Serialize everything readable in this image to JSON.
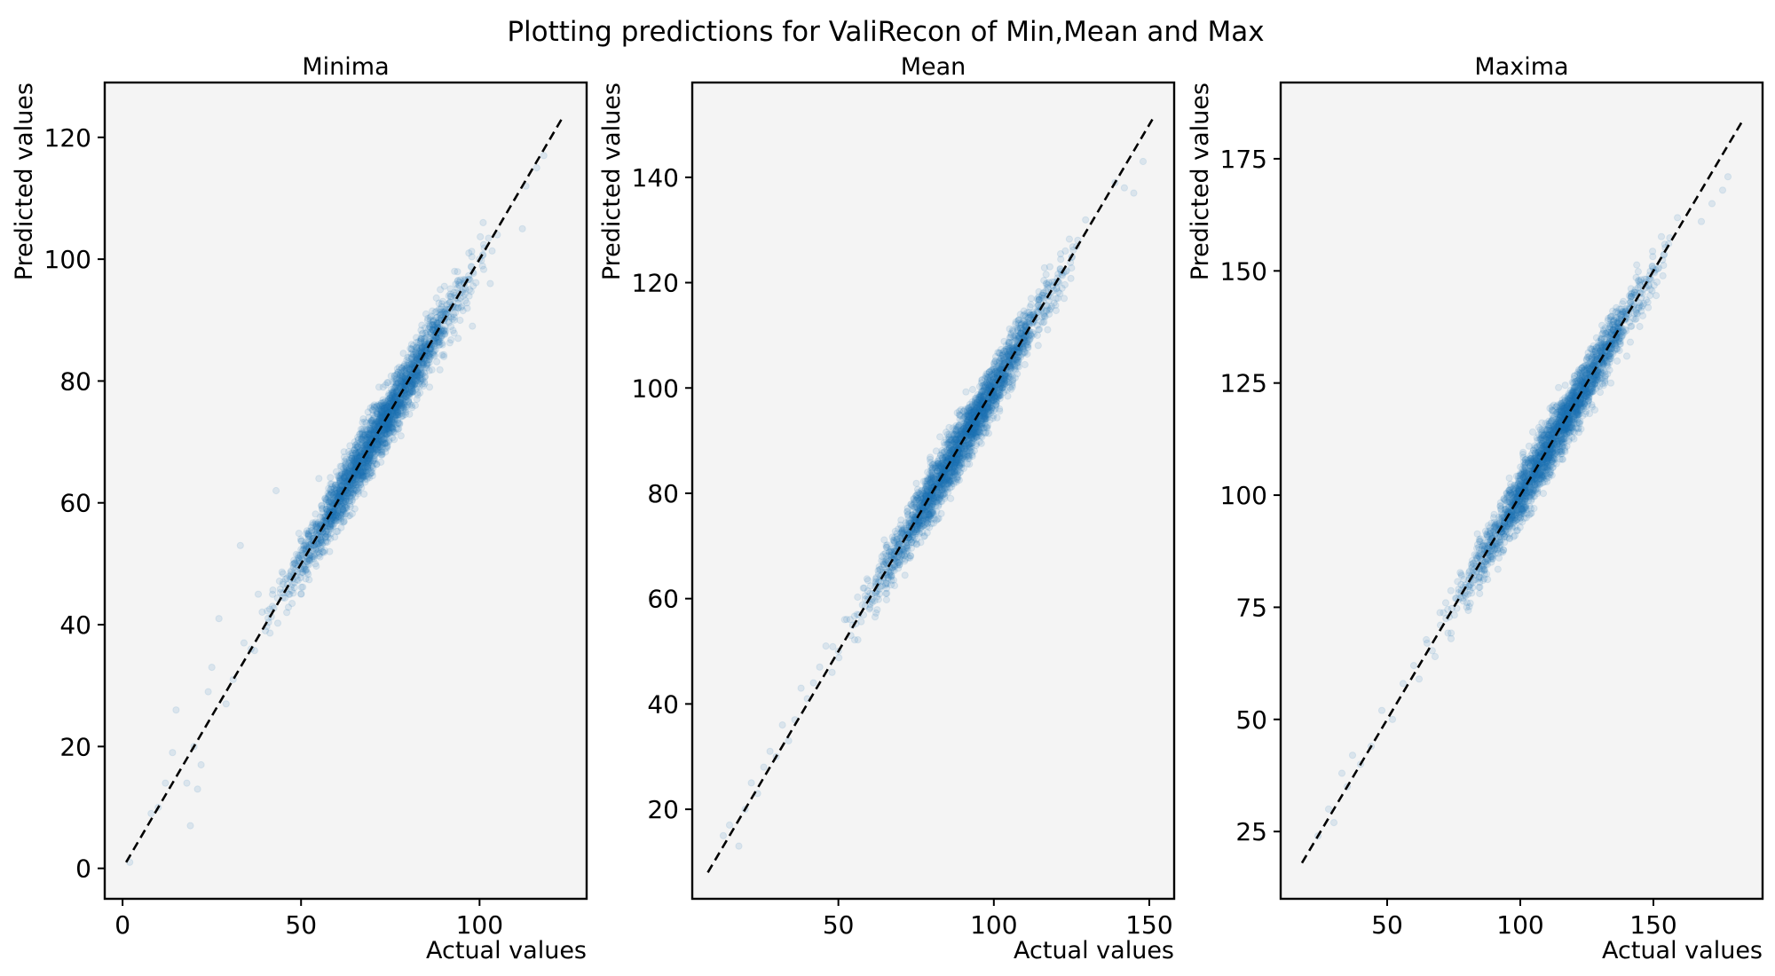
{
  "figure": {
    "suptitle": "Plotting predictions for ValiRecon of Min,Mean and Max",
    "colors": {
      "points": "#1f77b4",
      "panel_bg": "#f4f4f4",
      "identity_line": "#000000"
    }
  },
  "chart_data": [
    {
      "type": "scatter",
      "title": "Minima",
      "xlabel": "Actual values",
      "ylabel": "Predicted values",
      "xlim": [
        -5,
        130
      ],
      "ylim": [
        -5,
        129
      ],
      "xticks": [
        0,
        50,
        100
      ],
      "yticks": [
        0,
        20,
        40,
        60,
        80,
        100,
        120
      ],
      "identity_line": [
        1,
        123
      ],
      "point_alpha": 0.12,
      "grid": false,
      "series": [
        {
          "data_points": [
            [
              2,
              1
            ],
            [
              8,
              9
            ],
            [
              10,
              10
            ],
            [
              12,
              14
            ],
            [
              14,
              19
            ],
            [
              15,
              26
            ],
            [
              18,
              14
            ],
            [
              19,
              7
            ],
            [
              20,
              20
            ],
            [
              21,
              13
            ],
            [
              22,
              17
            ],
            [
              24,
              29
            ],
            [
              25,
              33
            ],
            [
              27,
              41
            ],
            [
              29,
              27
            ],
            [
              31,
              31
            ],
            [
              33,
              53
            ],
            [
              34,
              37
            ],
            [
              36,
              36
            ],
            [
              38,
              45
            ],
            [
              40,
              39
            ],
            [
              42,
              43
            ],
            [
              43,
              62
            ],
            [
              45,
              47
            ],
            [
              46,
              42
            ],
            [
              48,
              50
            ],
            [
              50,
              45
            ],
            [
              52,
              54
            ],
            [
              54,
              50
            ],
            [
              55,
              64
            ],
            [
              57,
              57
            ],
            [
              58,
              52
            ],
            [
              60,
              61
            ],
            [
              61,
              66
            ],
            [
              62,
              57
            ],
            [
              64,
              64
            ],
            [
              65,
              70
            ],
            [
              66,
              62
            ],
            [
              68,
              68
            ],
            [
              69,
              74
            ],
            [
              70,
              66
            ],
            [
              72,
              73
            ],
            [
              73,
              79
            ],
            [
              74,
              69
            ],
            [
              76,
              77
            ],
            [
              77,
              82
            ],
            [
              78,
              71
            ],
            [
              80,
              80
            ],
            [
              81,
              86
            ],
            [
              82,
              76
            ],
            [
              84,
              84
            ],
            [
              85,
              91
            ],
            [
              86,
              79
            ],
            [
              88,
              88
            ],
            [
              89,
              95
            ],
            [
              90,
              84
            ],
            [
              92,
              92
            ],
            [
              93,
              98
            ],
            [
              94,
              87
            ],
            [
              96,
              95
            ],
            [
              97,
              101
            ],
            [
              98,
              89
            ],
            [
              100,
              100
            ],
            [
              101,
              106
            ],
            [
              103,
              96
            ],
            [
              105,
              104
            ],
            [
              112,
              105
            ],
            [
              113,
              112
            ],
            [
              116,
              115
            ],
            [
              118,
              117
            ]
          ]
        }
      ]
    },
    {
      "type": "scatter",
      "title": "Mean",
      "xlabel": "Actual values",
      "ylabel": "Predicted values",
      "xlim": [
        3,
        158
      ],
      "ylim": [
        3,
        158
      ],
      "xticks": [
        50,
        100,
        150
      ],
      "yticks": [
        20,
        40,
        60,
        80,
        100,
        120,
        140
      ],
      "identity_line": [
        8,
        151
      ],
      "point_alpha": 0.12,
      "grid": false,
      "series": [
        {
          "data_points": [
            [
              13,
              15
            ],
            [
              15,
              17
            ],
            [
              18,
              13
            ],
            [
              20,
              20
            ],
            [
              22,
              25
            ],
            [
              24,
              23
            ],
            [
              26,
              28
            ],
            [
              28,
              31
            ],
            [
              30,
              30
            ],
            [
              32,
              36
            ],
            [
              34,
              33
            ],
            [
              36,
              37
            ],
            [
              38,
              43
            ],
            [
              40,
              41
            ],
            [
              42,
              44
            ],
            [
              44,
              47
            ],
            [
              46,
              51
            ],
            [
              48,
              46
            ],
            [
              50,
              50
            ],
            [
              52,
              56
            ],
            [
              54,
              53
            ],
            [
              56,
              57
            ],
            [
              58,
              62
            ],
            [
              60,
              58
            ],
            [
              62,
              63
            ],
            [
              64,
              68
            ],
            [
              66,
              64
            ],
            [
              68,
              69
            ],
            [
              70,
              74
            ],
            [
              72,
              70
            ],
            [
              74,
              75
            ],
            [
              76,
              80
            ],
            [
              78,
              75
            ],
            [
              80,
              81
            ],
            [
              82,
              86
            ],
            [
              84,
              80
            ],
            [
              86,
              87
            ],
            [
              88,
              92
            ],
            [
              90,
              87
            ],
            [
              92,
              93
            ],
            [
              94,
              98
            ],
            [
              96,
              93
            ],
            [
              98,
              99
            ],
            [
              100,
              104
            ],
            [
              102,
              98
            ],
            [
              104,
              106
            ],
            [
              106,
              111
            ],
            [
              108,
              104
            ],
            [
              110,
              112
            ],
            [
              112,
              117
            ],
            [
              114,
              110
            ],
            [
              116,
              118
            ],
            [
              118,
              123
            ],
            [
              120,
              117
            ],
            [
              123,
              126
            ],
            [
              139,
              139
            ],
            [
              142,
              138
            ],
            [
              145,
              137
            ],
            [
              148,
              143
            ]
          ]
        }
      ]
    },
    {
      "type": "scatter",
      "title": "Maxima",
      "xlabel": "Actual values",
      "ylabel": "Predicted values",
      "xlim": [
        10,
        191
      ],
      "ylim": [
        10,
        192
      ],
      "xticks": [
        50,
        100,
        150
      ],
      "yticks": [
        25,
        50,
        75,
        100,
        125,
        150,
        175
      ],
      "identity_line": [
        18,
        184
      ],
      "point_alpha": 0.12,
      "grid": false,
      "series": [
        {
          "data_points": [
            [
              24,
              24
            ],
            [
              28,
              30
            ],
            [
              30,
              27
            ],
            [
              33,
              38
            ],
            [
              35,
              35
            ],
            [
              37,
              42
            ],
            [
              40,
              40
            ],
            [
              44,
              44
            ],
            [
              48,
              52
            ],
            [
              52,
              50
            ],
            [
              56,
              58
            ],
            [
              60,
              62
            ],
            [
              62,
              59
            ],
            [
              65,
              67
            ],
            [
              68,
              64
            ],
            [
              70,
              71
            ],
            [
              72,
              76
            ],
            [
              74,
              68
            ],
            [
              76,
              77
            ],
            [
              78,
              82
            ],
            [
              80,
              76
            ],
            [
              82,
              84
            ],
            [
              84,
              89
            ],
            [
              86,
              81
            ],
            [
              88,
              88
            ],
            [
              90,
              95
            ],
            [
              92,
              86
            ],
            [
              94,
              94
            ],
            [
              96,
              101
            ],
            [
              98,
              91
            ],
            [
              100,
              100
            ],
            [
              102,
              106
            ],
            [
              104,
              97
            ],
            [
              106,
              106
            ],
            [
              108,
              112
            ],
            [
              110,
              103
            ],
            [
              112,
              112
            ],
            [
              114,
              118
            ],
            [
              116,
              108
            ],
            [
              118,
              119
            ],
            [
              120,
              125
            ],
            [
              122,
              114
            ],
            [
              124,
              125
            ],
            [
              126,
              131
            ],
            [
              128,
              119
            ],
            [
              130,
              130
            ],
            [
              132,
              136
            ],
            [
              134,
              125
            ],
            [
              136,
              135
            ],
            [
              138,
              140
            ],
            [
              140,
              131
            ],
            [
              142,
              145
            ],
            [
              146,
              140
            ],
            [
              168,
              161
            ],
            [
              172,
              165
            ],
            [
              176,
              168
            ],
            [
              178,
              171
            ]
          ]
        }
      ]
    }
  ]
}
